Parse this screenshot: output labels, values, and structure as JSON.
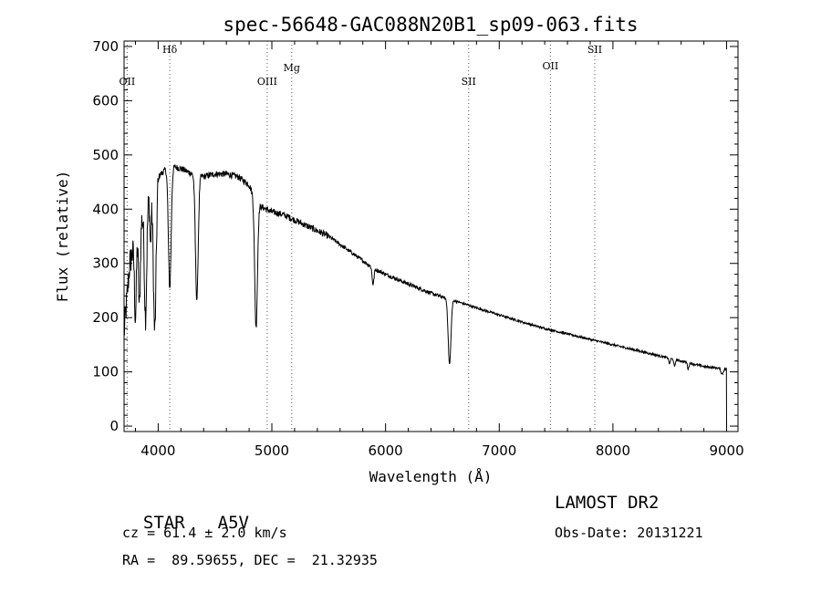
{
  "chart_data": {
    "type": "line",
    "title": "spec-56648-GAC088N20B1_sp09-063.fits",
    "xlabel": "Wavelength (Å)",
    "ylabel": "Flux (relative)",
    "xlim": [
      3700,
      9100
    ],
    "ylim": [
      -10,
      710
    ],
    "x_ticks": [
      4000,
      5000,
      6000,
      7000,
      8000,
      9000
    ],
    "y_ticks": [
      0,
      100,
      200,
      300,
      400,
      500,
      600,
      700
    ],
    "grid": false,
    "continuum": [
      [
        3700,
        170
      ],
      [
        3750,
        300
      ],
      [
        3800,
        340
      ],
      [
        3850,
        380
      ],
      [
        3900,
        410
      ],
      [
        4000,
        460
      ],
      [
        4100,
        480
      ],
      [
        4200,
        475
      ],
      [
        4300,
        465
      ],
      [
        4400,
        460
      ],
      [
        4500,
        465
      ],
      [
        4600,
        465
      ],
      [
        4700,
        460
      ],
      [
        4800,
        445
      ],
      [
        4850,
        420
      ],
      [
        4900,
        405
      ],
      [
        5000,
        395
      ],
      [
        5100,
        390
      ],
      [
        5200,
        380
      ],
      [
        5300,
        370
      ],
      [
        5400,
        360
      ],
      [
        5500,
        350
      ],
      [
        5600,
        335
      ],
      [
        5700,
        320
      ],
      [
        5800,
        305
      ],
      [
        5900,
        290
      ],
      [
        6000,
        280
      ],
      [
        6200,
        262
      ],
      [
        6400,
        245
      ],
      [
        6500,
        238
      ],
      [
        6700,
        225
      ],
      [
        6800,
        218
      ],
      [
        7000,
        205
      ],
      [
        7200,
        192
      ],
      [
        7400,
        180
      ],
      [
        7500,
        175
      ],
      [
        7600,
        170
      ],
      [
        7800,
        160
      ],
      [
        8000,
        150
      ],
      [
        8200,
        140
      ],
      [
        8400,
        130
      ],
      [
        8600,
        120
      ],
      [
        8800,
        110
      ],
      [
        9000,
        105
      ]
    ],
    "absorption_lines": [
      {
        "wavelength": 3800,
        "depth": 140,
        "width": 8
      },
      {
        "wavelength": 3835,
        "depth": 150,
        "width": 8
      },
      {
        "wavelength": 3889,
        "depth": 200,
        "width": 10
      },
      {
        "wavelength": 3933,
        "depth": 90,
        "width": 6
      },
      {
        "wavelength": 3970,
        "depth": 270,
        "width": 12
      },
      {
        "wavelength": 4102,
        "depth": 225,
        "width": 12
      },
      {
        "wavelength": 4340,
        "depth": 230,
        "width": 12
      },
      {
        "wavelength": 4861,
        "depth": 235,
        "width": 12
      },
      {
        "wavelength": 5890,
        "depth": 30,
        "width": 8
      },
      {
        "wavelength": 6563,
        "depth": 120,
        "width": 12
      },
      {
        "wavelength": 8498,
        "depth": 10,
        "width": 6
      },
      {
        "wavelength": 8542,
        "depth": 14,
        "width": 6
      },
      {
        "wavelength": 8662,
        "depth": 12,
        "width": 6
      },
      {
        "wavelength": 8960,
        "depth": 10,
        "width": 10
      }
    ],
    "spectral_lines": [
      {
        "label": "OII",
        "wavelength": 3727
      },
      {
        "label": "Hδ",
        "wavelength": 4102
      },
      {
        "label": "OIII",
        "wavelength": 4959
      },
      {
        "label": "Mg",
        "wavelength": 5175
      },
      {
        "label": "SII",
        "wavelength": 6731
      },
      {
        "label": "OII",
        "wavelength": 7450
      },
      {
        "label": "SII",
        "wavelength": 7840
      }
    ]
  },
  "info": {
    "class_label": "STAR",
    "subclass": "A5V",
    "survey": "LAMOST DR2",
    "cz_text": "cz = 61.4 ± 2.0 km/s",
    "obs_date_text": "Obs-Date: 20131221",
    "coords_text": "RA =  89.59655, DEC =  21.32935"
  }
}
